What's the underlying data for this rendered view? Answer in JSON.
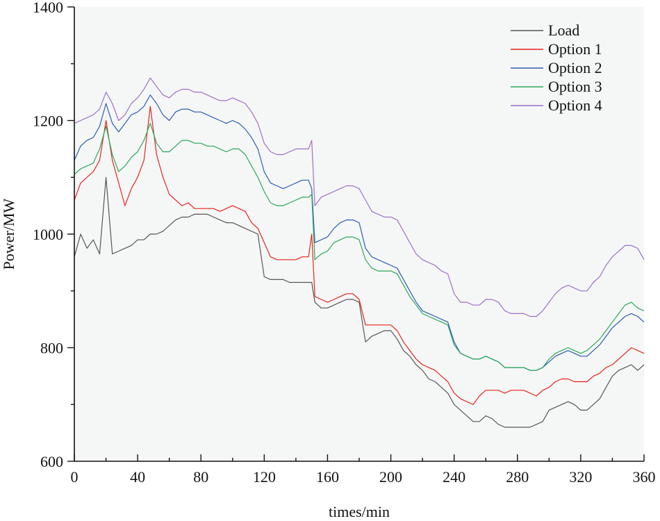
{
  "chart_data": {
    "type": "line",
    "title": "",
    "xlabel": "times/min",
    "ylabel": "Power/MW",
    "xlim": [
      0,
      360
    ],
    "ylim": [
      600,
      1400
    ],
    "xticks": [
      0,
      40,
      80,
      120,
      160,
      200,
      240,
      280,
      320,
      360
    ],
    "yticks": [
      600,
      800,
      1000,
      1200,
      1400
    ],
    "xtick_labels": [
      "0",
      "40",
      "80",
      "120",
      "160",
      "200",
      "240",
      "280",
      "320",
      "360"
    ],
    "ytick_labels": [
      "600",
      "800",
      "1000",
      "1200",
      "1400"
    ],
    "grid": false,
    "legend_position": "top-right",
    "x": [
      0,
      4,
      8,
      12,
      16,
      20,
      24,
      28,
      32,
      36,
      40,
      44,
      48,
      52,
      56,
      60,
      64,
      68,
      72,
      76,
      80,
      84,
      88,
      92,
      96,
      100,
      104,
      108,
      112,
      116,
      120,
      124,
      128,
      132,
      136,
      140,
      144,
      148,
      150,
      152,
      156,
      160,
      164,
      168,
      172,
      176,
      180,
      184,
      188,
      192,
      196,
      200,
      204,
      208,
      212,
      216,
      220,
      224,
      228,
      232,
      236,
      240,
      244,
      248,
      252,
      256,
      260,
      264,
      268,
      272,
      276,
      280,
      284,
      288,
      292,
      296,
      300,
      304,
      308,
      312,
      316,
      320,
      324,
      328,
      332,
      336,
      340,
      344,
      348,
      352,
      356,
      360
    ],
    "series": [
      {
        "name": "Load",
        "color": "#555555",
        "values": [
          960,
          1000,
          975,
          990,
          965,
          1100,
          965,
          970,
          975,
          980,
          990,
          990,
          1000,
          1000,
          1005,
          1015,
          1025,
          1030,
          1030,
          1035,
          1035,
          1035,
          1030,
          1025,
          1020,
          1020,
          1015,
          1010,
          1005,
          1000,
          925,
          920,
          920,
          920,
          915,
          915,
          915,
          915,
          915,
          880,
          870,
          870,
          875,
          880,
          885,
          885,
          880,
          810,
          820,
          825,
          830,
          830,
          815,
          795,
          785,
          770,
          760,
          745,
          740,
          730,
          720,
          700,
          690,
          680,
          670,
          670,
          680,
          675,
          665,
          660,
          660,
          660,
          660,
          660,
          665,
          670,
          690,
          695,
          700,
          705,
          700,
          690,
          690,
          700,
          710,
          730,
          750,
          760,
          765,
          770,
          760,
          770
        ]
      },
      {
        "name": "Option 1",
        "color": "#e8231c",
        "values": [
          1060,
          1090,
          1100,
          1110,
          1130,
          1200,
          1130,
          1090,
          1050,
          1080,
          1100,
          1130,
          1225,
          1140,
          1100,
          1070,
          1060,
          1050,
          1055,
          1045,
          1045,
          1045,
          1045,
          1040,
          1045,
          1050,
          1045,
          1040,
          1020,
          1010,
          985,
          960,
          955,
          955,
          955,
          955,
          960,
          960,
          1000,
          890,
          885,
          880,
          885,
          890,
          895,
          895,
          885,
          840,
          840,
          840,
          840,
          840,
          830,
          810,
          795,
          780,
          770,
          765,
          760,
          750,
          740,
          720,
          710,
          705,
          700,
          715,
          725,
          725,
          725,
          720,
          725,
          725,
          725,
          720,
          715,
          725,
          730,
          740,
          745,
          745,
          740,
          740,
          740,
          750,
          755,
          765,
          770,
          780,
          790,
          800,
          795,
          790
        ]
      },
      {
        "name": "Option 2",
        "color": "#2d5bb5",
        "values": [
          1130,
          1155,
          1165,
          1170,
          1190,
          1230,
          1195,
          1180,
          1195,
          1210,
          1215,
          1225,
          1245,
          1230,
          1210,
          1200,
          1215,
          1220,
          1220,
          1215,
          1215,
          1210,
          1205,
          1200,
          1195,
          1200,
          1195,
          1185,
          1170,
          1150,
          1110,
          1090,
          1085,
          1080,
          1085,
          1090,
          1095,
          1095,
          1080,
          985,
          990,
          995,
          1010,
          1020,
          1025,
          1025,
          1020,
          975,
          960,
          955,
          950,
          945,
          940,
          920,
          900,
          880,
          865,
          860,
          855,
          850,
          845,
          810,
          790,
          785,
          780,
          780,
          785,
          780,
          775,
          765,
          765,
          765,
          765,
          760,
          760,
          765,
          775,
          785,
          790,
          795,
          790,
          785,
          785,
          795,
          805,
          820,
          835,
          845,
          855,
          860,
          855,
          845
        ]
      },
      {
        "name": "Option 3",
        "color": "#2aa75a",
        "values": [
          1105,
          1115,
          1120,
          1125,
          1150,
          1190,
          1140,
          1110,
          1120,
          1135,
          1145,
          1165,
          1195,
          1160,
          1145,
          1145,
          1155,
          1165,
          1165,
          1160,
          1160,
          1155,
          1155,
          1150,
          1145,
          1150,
          1150,
          1140,
          1120,
          1100,
          1075,
          1055,
          1050,
          1050,
          1055,
          1060,
          1065,
          1065,
          1070,
          955,
          965,
          970,
          985,
          990,
          995,
          995,
          990,
          955,
          940,
          935,
          935,
          935,
          930,
          910,
          890,
          875,
          860,
          855,
          850,
          845,
          840,
          805,
          790,
          785,
          780,
          780,
          785,
          780,
          775,
          765,
          765,
          765,
          765,
          760,
          760,
          765,
          780,
          790,
          795,
          800,
          795,
          790,
          795,
          805,
          815,
          830,
          845,
          860,
          875,
          880,
          870,
          865
        ]
      },
      {
        "name": "Option 4",
        "color": "#9b6fc9",
        "values": [
          1195,
          1200,
          1205,
          1210,
          1220,
          1250,
          1230,
          1200,
          1210,
          1230,
          1240,
          1255,
          1275,
          1260,
          1245,
          1240,
          1250,
          1255,
          1255,
          1250,
          1250,
          1245,
          1240,
          1235,
          1235,
          1240,
          1235,
          1230,
          1215,
          1195,
          1160,
          1145,
          1140,
          1140,
          1145,
          1150,
          1150,
          1150,
          1165,
          1050,
          1065,
          1070,
          1075,
          1080,
          1085,
          1085,
          1080,
          1060,
          1040,
          1035,
          1030,
          1030,
          1025,
          1005,
          985,
          965,
          955,
          950,
          945,
          935,
          930,
          895,
          880,
          880,
          875,
          875,
          885,
          885,
          880,
          865,
          860,
          860,
          860,
          855,
          855,
          865,
          880,
          895,
          905,
          910,
          905,
          900,
          900,
          915,
          925,
          945,
          960,
          970,
          980,
          980,
          975,
          955
        ]
      }
    ]
  }
}
